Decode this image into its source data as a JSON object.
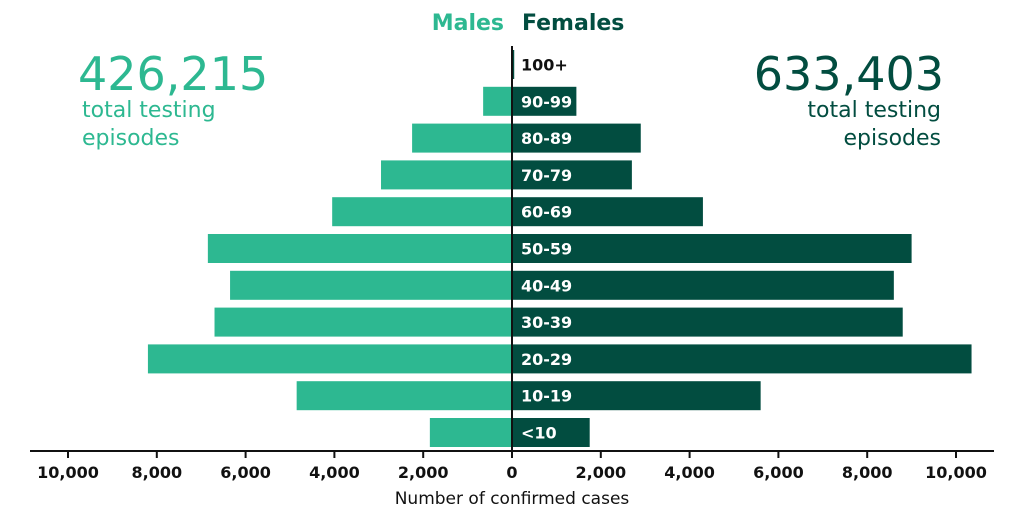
{
  "colors": {
    "males": "#2db891",
    "females": "#024d40",
    "axis": "#111111"
  },
  "legend": {
    "males_label": "Males",
    "females_label": "Females"
  },
  "totals": {
    "males_number": "426,215",
    "males_line1": "total testing",
    "males_line2": "episodes",
    "females_number": "633,403",
    "females_line1": "total testing",
    "females_line2": "episodes"
  },
  "chart_data": {
    "type": "bar",
    "orientation": "horizontal-population-pyramid",
    "categories": [
      "100+",
      "90-99",
      "80-89",
      "70-79",
      "60-69",
      "50-59",
      "40-49",
      "30-39",
      "20-29",
      "10-19",
      "<10"
    ],
    "series": [
      {
        "name": "Males",
        "values": [
          0,
          650,
          2250,
          2950,
          4050,
          6850,
          6350,
          6700,
          8200,
          4850,
          1850
        ]
      },
      {
        "name": "Females",
        "values": [
          50,
          1450,
          2900,
          2700,
          4300,
          9000,
          8600,
          8800,
          10350,
          5600,
          1750
        ]
      }
    ],
    "xlabel": "Number of confirmed cases",
    "xlim": [
      -10000,
      10000
    ],
    "xticks": [
      -10000,
      -8000,
      -6000,
      -4000,
      -2000,
      0,
      2000,
      4000,
      6000,
      8000,
      10000
    ],
    "xtick_labels": [
      "10,000",
      "8,000",
      "6,000",
      "4,000",
      "2,000",
      "0",
      "2,000",
      "4,000",
      "6,000",
      "8,000",
      "10,000"
    ],
    "grid": false,
    "legend_position": "top-center"
  }
}
